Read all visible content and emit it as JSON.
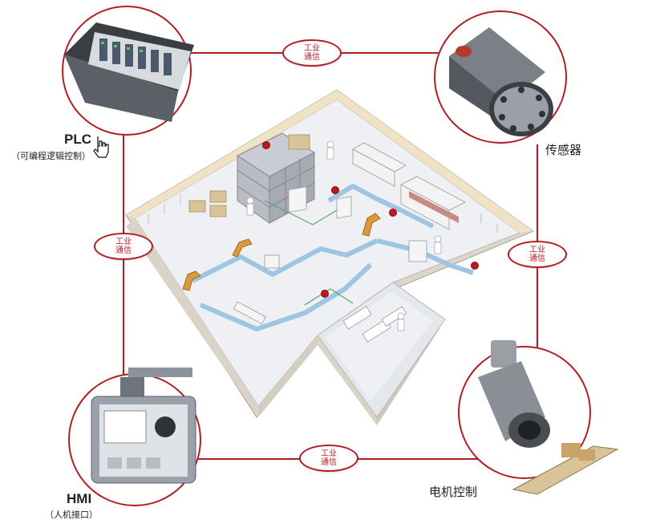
{
  "nodes": {
    "plc": {
      "title": "PLC",
      "subtitle": "（可编程逻辑控制）"
    },
    "sensor": {
      "title": "传感器"
    },
    "hmi": {
      "title": "HMI",
      "subtitle": "（人机接口）"
    },
    "motor": {
      "title": "电机控制"
    }
  },
  "comm_badges": [
    {
      "line1": "工业",
      "line2": "通信"
    },
    {
      "line1": "工业",
      "line2": "通信"
    },
    {
      "line1": "工业",
      "line2": "通信"
    },
    {
      "line1": "工业",
      "line2": "通信"
    }
  ],
  "colors": {
    "link": "#b01e24",
    "floor": "#e9ecf0",
    "wall": "#efe6d4",
    "conveyor": "#9fc6e0",
    "sensor_dot": "#c0181e"
  },
  "icons": [
    "plc-rack-icon",
    "sensor-icon",
    "hmi-panel-icon",
    "motor-icon",
    "hand-cursor-icon",
    "factory-floor-illustration"
  ]
}
